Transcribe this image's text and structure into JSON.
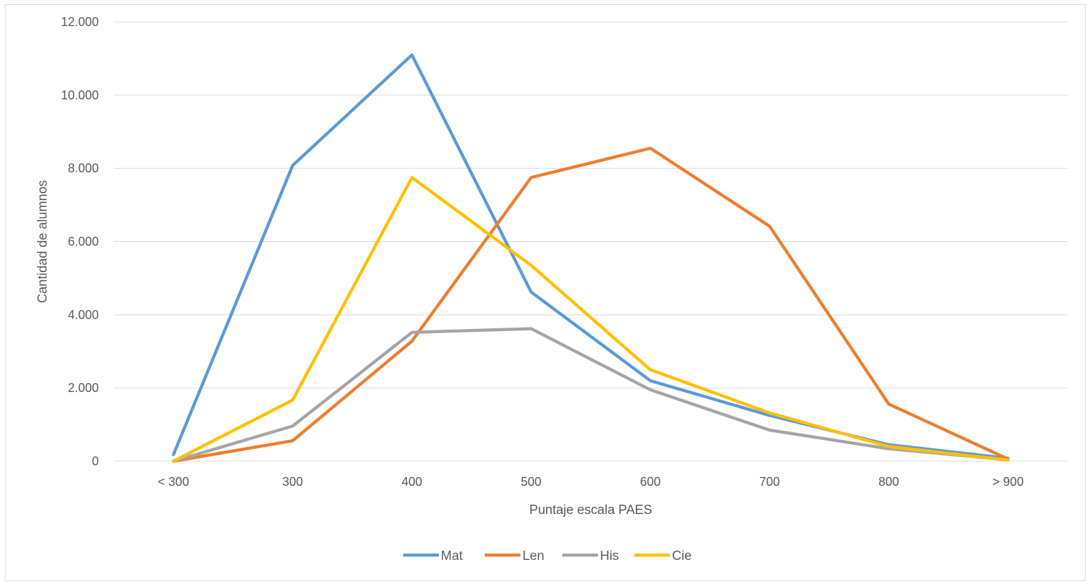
{
  "chart_data": {
    "type": "line",
    "xlabel": "Puntaje escala PAES",
    "ylabel": "Cantidad de alumnos",
    "ylim": [
      0,
      12000
    ],
    "yticks": [
      "0",
      "2.000",
      "4.000",
      "6.000",
      "8.000",
      "10.000",
      "12.000"
    ],
    "ytick_values": [
      0,
      2000,
      4000,
      6000,
      8000,
      10000,
      12000
    ],
    "categories": [
      "< 300",
      "300",
      "400",
      "500",
      "600",
      "700",
      "800",
      "> 900"
    ],
    "grid": "horizontal",
    "legend_position": "bottom",
    "series": [
      {
        "name": "Mat",
        "color": "#5b9bd5",
        "values": [
          180,
          8080,
          11100,
          4620,
          2200,
          1250,
          450,
          80
        ]
      },
      {
        "name": "Len",
        "color": "#ed7d31",
        "values": [
          0,
          560,
          3280,
          7750,
          8550,
          6420,
          1560,
          60
        ]
      },
      {
        "name": "His",
        "color": "#a5a5a5",
        "values": [
          0,
          960,
          3520,
          3620,
          1950,
          850,
          340,
          40
        ]
      },
      {
        "name": "Cie",
        "color": "#ffc000",
        "values": [
          0,
          1670,
          7750,
          5350,
          2500,
          1320,
          400,
          30
        ]
      }
    ]
  }
}
